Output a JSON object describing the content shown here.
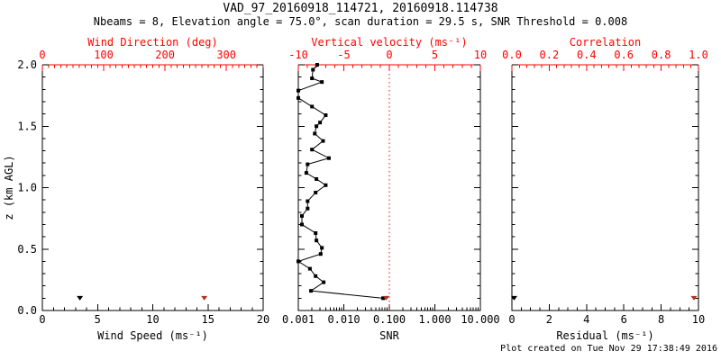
{
  "title": "VAD_97_20160918_114721, 20160918.114738",
  "subtitle": "Nbeams = 8, Elevation angle = 75.0°, scan duration = 29.5 s, SNR Threshold = 0.008",
  "footer": "Plot created on Tue Nov 29 17:38:49 2016",
  "colors": {
    "axis_black": "#000000",
    "axis_red": "#ff0000",
    "marker_dark_red": "#aa3726",
    "marker_black": "#000000",
    "background": "#ffffff"
  },
  "chart_data": {
    "type": "line",
    "yaxis": {
      "label": "z (km AGL)",
      "range": [
        0,
        2
      ],
      "major": [
        0,
        0.5,
        1.0,
        1.5,
        2.0
      ],
      "tick_labels": [
        "0.0",
        "0.5",
        "1.0",
        "1.5",
        "2.0"
      ],
      "minor_step": 0.1
    },
    "panels": [
      {
        "id": "wind",
        "bottom_axis": {
          "label": "Wind Speed (ms⁻¹)",
          "scale": "linear",
          "range": [
            0,
            20
          ],
          "major": [
            0,
            5,
            10,
            15,
            20
          ],
          "tick_labels": [
            "0",
            "5",
            "10",
            "15",
            "20"
          ],
          "minor_step": 1
        },
        "top_axis": {
          "label": "Wind Direction (deg)",
          "scale": "linear",
          "range": [
            0,
            360
          ],
          "major": [
            0,
            100,
            200,
            300
          ],
          "tick_labels": [
            "0",
            "100",
            "200",
            "300"
          ],
          "minor_step": 10
        },
        "series": [
          {
            "name": "wind-speed",
            "axis": "bottom",
            "color": "black",
            "marker": "triangle-down",
            "line": false,
            "points": [
              [
                3.4,
                0.1
              ]
            ]
          },
          {
            "name": "wind-direction",
            "axis": "top",
            "color": "dark-red",
            "marker": "triangle-down",
            "line": false,
            "points": [
              [
                264,
                0.1
              ]
            ]
          }
        ]
      },
      {
        "id": "snr",
        "bottom_axis": {
          "label": "SNR",
          "scale": "log",
          "range": [
            0.001,
            10
          ],
          "major": [
            0.001,
            0.01,
            0.1,
            1,
            10
          ],
          "tick_labels": [
            "0.001",
            "0.010",
            "0.100",
            "1.000",
            "10.000"
          ]
        },
        "top_axis": {
          "label": "Vertical velocity (ms⁻¹)",
          "scale": "linear",
          "range": [
            -10,
            10
          ],
          "major": [
            -10,
            -5,
            0,
            5,
            10
          ],
          "tick_labels": [
            "-10",
            "-5",
            "0",
            "5",
            "10"
          ],
          "minor_step": 1
        },
        "ref_line": {
          "axis": "top",
          "value": 0,
          "style": "dotted",
          "color": "red"
        },
        "series": [
          {
            "name": "snr-profile",
            "axis": "bottom",
            "color": "black",
            "marker": "square",
            "line": true,
            "points": [
              [
                0.0026,
                2.0
              ],
              [
                0.0021,
                1.96
              ],
              [
                0.002,
                1.89
              ],
              [
                0.0033,
                1.86
              ],
              [
                0.001,
                1.79
              ],
              [
                0.001,
                1.73
              ],
              [
                0.002,
                1.66
              ],
              [
                0.004,
                1.59
              ],
              [
                0.003,
                1.53
              ],
              [
                0.0025,
                1.5
              ],
              [
                0.0023,
                1.44
              ],
              [
                0.0035,
                1.38
              ],
              [
                0.002,
                1.31
              ],
              [
                0.0047,
                1.24
              ],
              [
                0.0016,
                1.19
              ],
              [
                0.0015,
                1.12
              ],
              [
                0.0025,
                1.07
              ],
              [
                0.004,
                1.02
              ],
              [
                0.0024,
                0.96
              ],
              [
                0.0016,
                0.89
              ],
              [
                0.0016,
                0.83
              ],
              [
                0.0012,
                0.77
              ],
              [
                0.0012,
                0.7
              ],
              [
                0.0024,
                0.63
              ],
              [
                0.0025,
                0.57
              ],
              [
                0.0033,
                0.51
              ],
              [
                0.0031,
                0.46
              ],
              [
                0.001,
                0.4
              ],
              [
                0.0018,
                0.34
              ],
              [
                0.0024,
                0.28
              ],
              [
                0.0036,
                0.23
              ],
              [
                0.0019,
                0.16
              ],
              [
                0.073,
                0.1
              ]
            ]
          },
          {
            "name": "vertical-velocity",
            "axis": "top",
            "color": "dark-red",
            "marker": "triangle-down",
            "line": false,
            "points": [
              [
                -0.35,
                0.1
              ]
            ]
          }
        ]
      },
      {
        "id": "residual",
        "bottom_axis": {
          "label": "Residual (ms⁻¹)",
          "scale": "linear",
          "range": [
            0,
            10
          ],
          "major": [
            0,
            2,
            4,
            6,
            8,
            10
          ],
          "tick_labels": [
            "0",
            "2",
            "4",
            "6",
            "8",
            "10"
          ],
          "minor_step": 0.5
        },
        "top_axis": {
          "label": "Correlation",
          "scale": "linear",
          "range": [
            0,
            1
          ],
          "major": [
            0,
            0.2,
            0.4,
            0.6,
            0.8,
            1.0
          ],
          "tick_labels": [
            "0.0",
            "0.2",
            "0.4",
            "0.6",
            "0.8",
            "1.0"
          ],
          "minor_step": 0.04
        },
        "series": [
          {
            "name": "residual",
            "axis": "bottom",
            "color": "black",
            "marker": "triangle-down",
            "line": false,
            "points": [
              [
                0.12,
                0.1
              ]
            ]
          },
          {
            "name": "correlation",
            "axis": "top",
            "color": "dark-red",
            "marker": "triangle-down",
            "line": false,
            "points": [
              [
                0.976,
                0.1
              ]
            ]
          }
        ]
      }
    ]
  }
}
